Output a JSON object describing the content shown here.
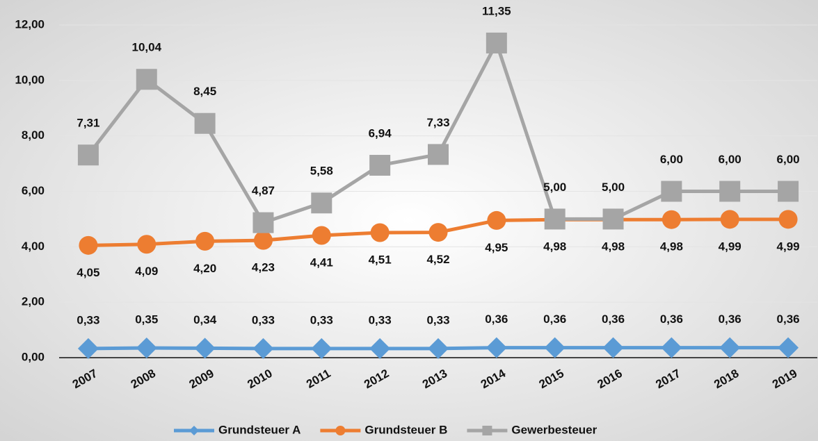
{
  "chart_data": {
    "type": "line",
    "categories": [
      "2007",
      "2008",
      "2009",
      "2010",
      "2011",
      "2012",
      "2013",
      "2014",
      "2015",
      "2016",
      "2017",
      "2018",
      "2019"
    ],
    "series": [
      {
        "name": "Grundsteuer A",
        "color": "#5b9bd5",
        "marker": "diamond",
        "values": [
          0.33,
          0.35,
          0.34,
          0.33,
          0.33,
          0.33,
          0.33,
          0.36,
          0.36,
          0.36,
          0.36,
          0.36,
          0.36
        ],
        "value_labels": [
          "0,33",
          "0,35",
          "0,34",
          "0,33",
          "0,33",
          "0,33",
          "0,33",
          "0,36",
          "0,36",
          "0,36",
          "0,36",
          "0,36",
          "0,36"
        ]
      },
      {
        "name": "Grundsteuer B",
        "color": "#ed7d31",
        "marker": "circle",
        "values": [
          4.05,
          4.09,
          4.2,
          4.23,
          4.41,
          4.51,
          4.52,
          4.95,
          4.98,
          4.98,
          4.98,
          4.99,
          4.99
        ],
        "value_labels": [
          "4,05",
          "4,09",
          "4,20",
          "4,23",
          "4,41",
          "4,51",
          "4,52",
          "4,95",
          "4,98",
          "4,98",
          "4,98",
          "4,99",
          "4,99"
        ]
      },
      {
        "name": "Gewerbesteuer",
        "color": "#a5a5a5",
        "marker": "square",
        "values": [
          7.31,
          10.04,
          8.45,
          4.87,
          5.58,
          6.94,
          7.33,
          11.35,
          5.0,
          5.0,
          6.0,
          6.0,
          6.0
        ],
        "value_labels": [
          "7,31",
          "10,04",
          "8,45",
          "4,87",
          "5,58",
          "6,94",
          "7,33",
          "11,35",
          "5,00",
          "5,00",
          "6,00",
          "6,00",
          "6,00"
        ]
      }
    ],
    "ylim": [
      0,
      12
    ],
    "yticks": [
      {
        "value": 0,
        "label": "0,00"
      },
      {
        "value": 2,
        "label": "2,00"
      },
      {
        "value": 4,
        "label": "4,00"
      },
      {
        "value": 6,
        "label": "6,00"
      },
      {
        "value": 8,
        "label": "8,00"
      },
      {
        "value": 10,
        "label": "10,00"
      },
      {
        "value": 12,
        "label": "12,00"
      }
    ],
    "grid": true,
    "legend": "bottom"
  }
}
